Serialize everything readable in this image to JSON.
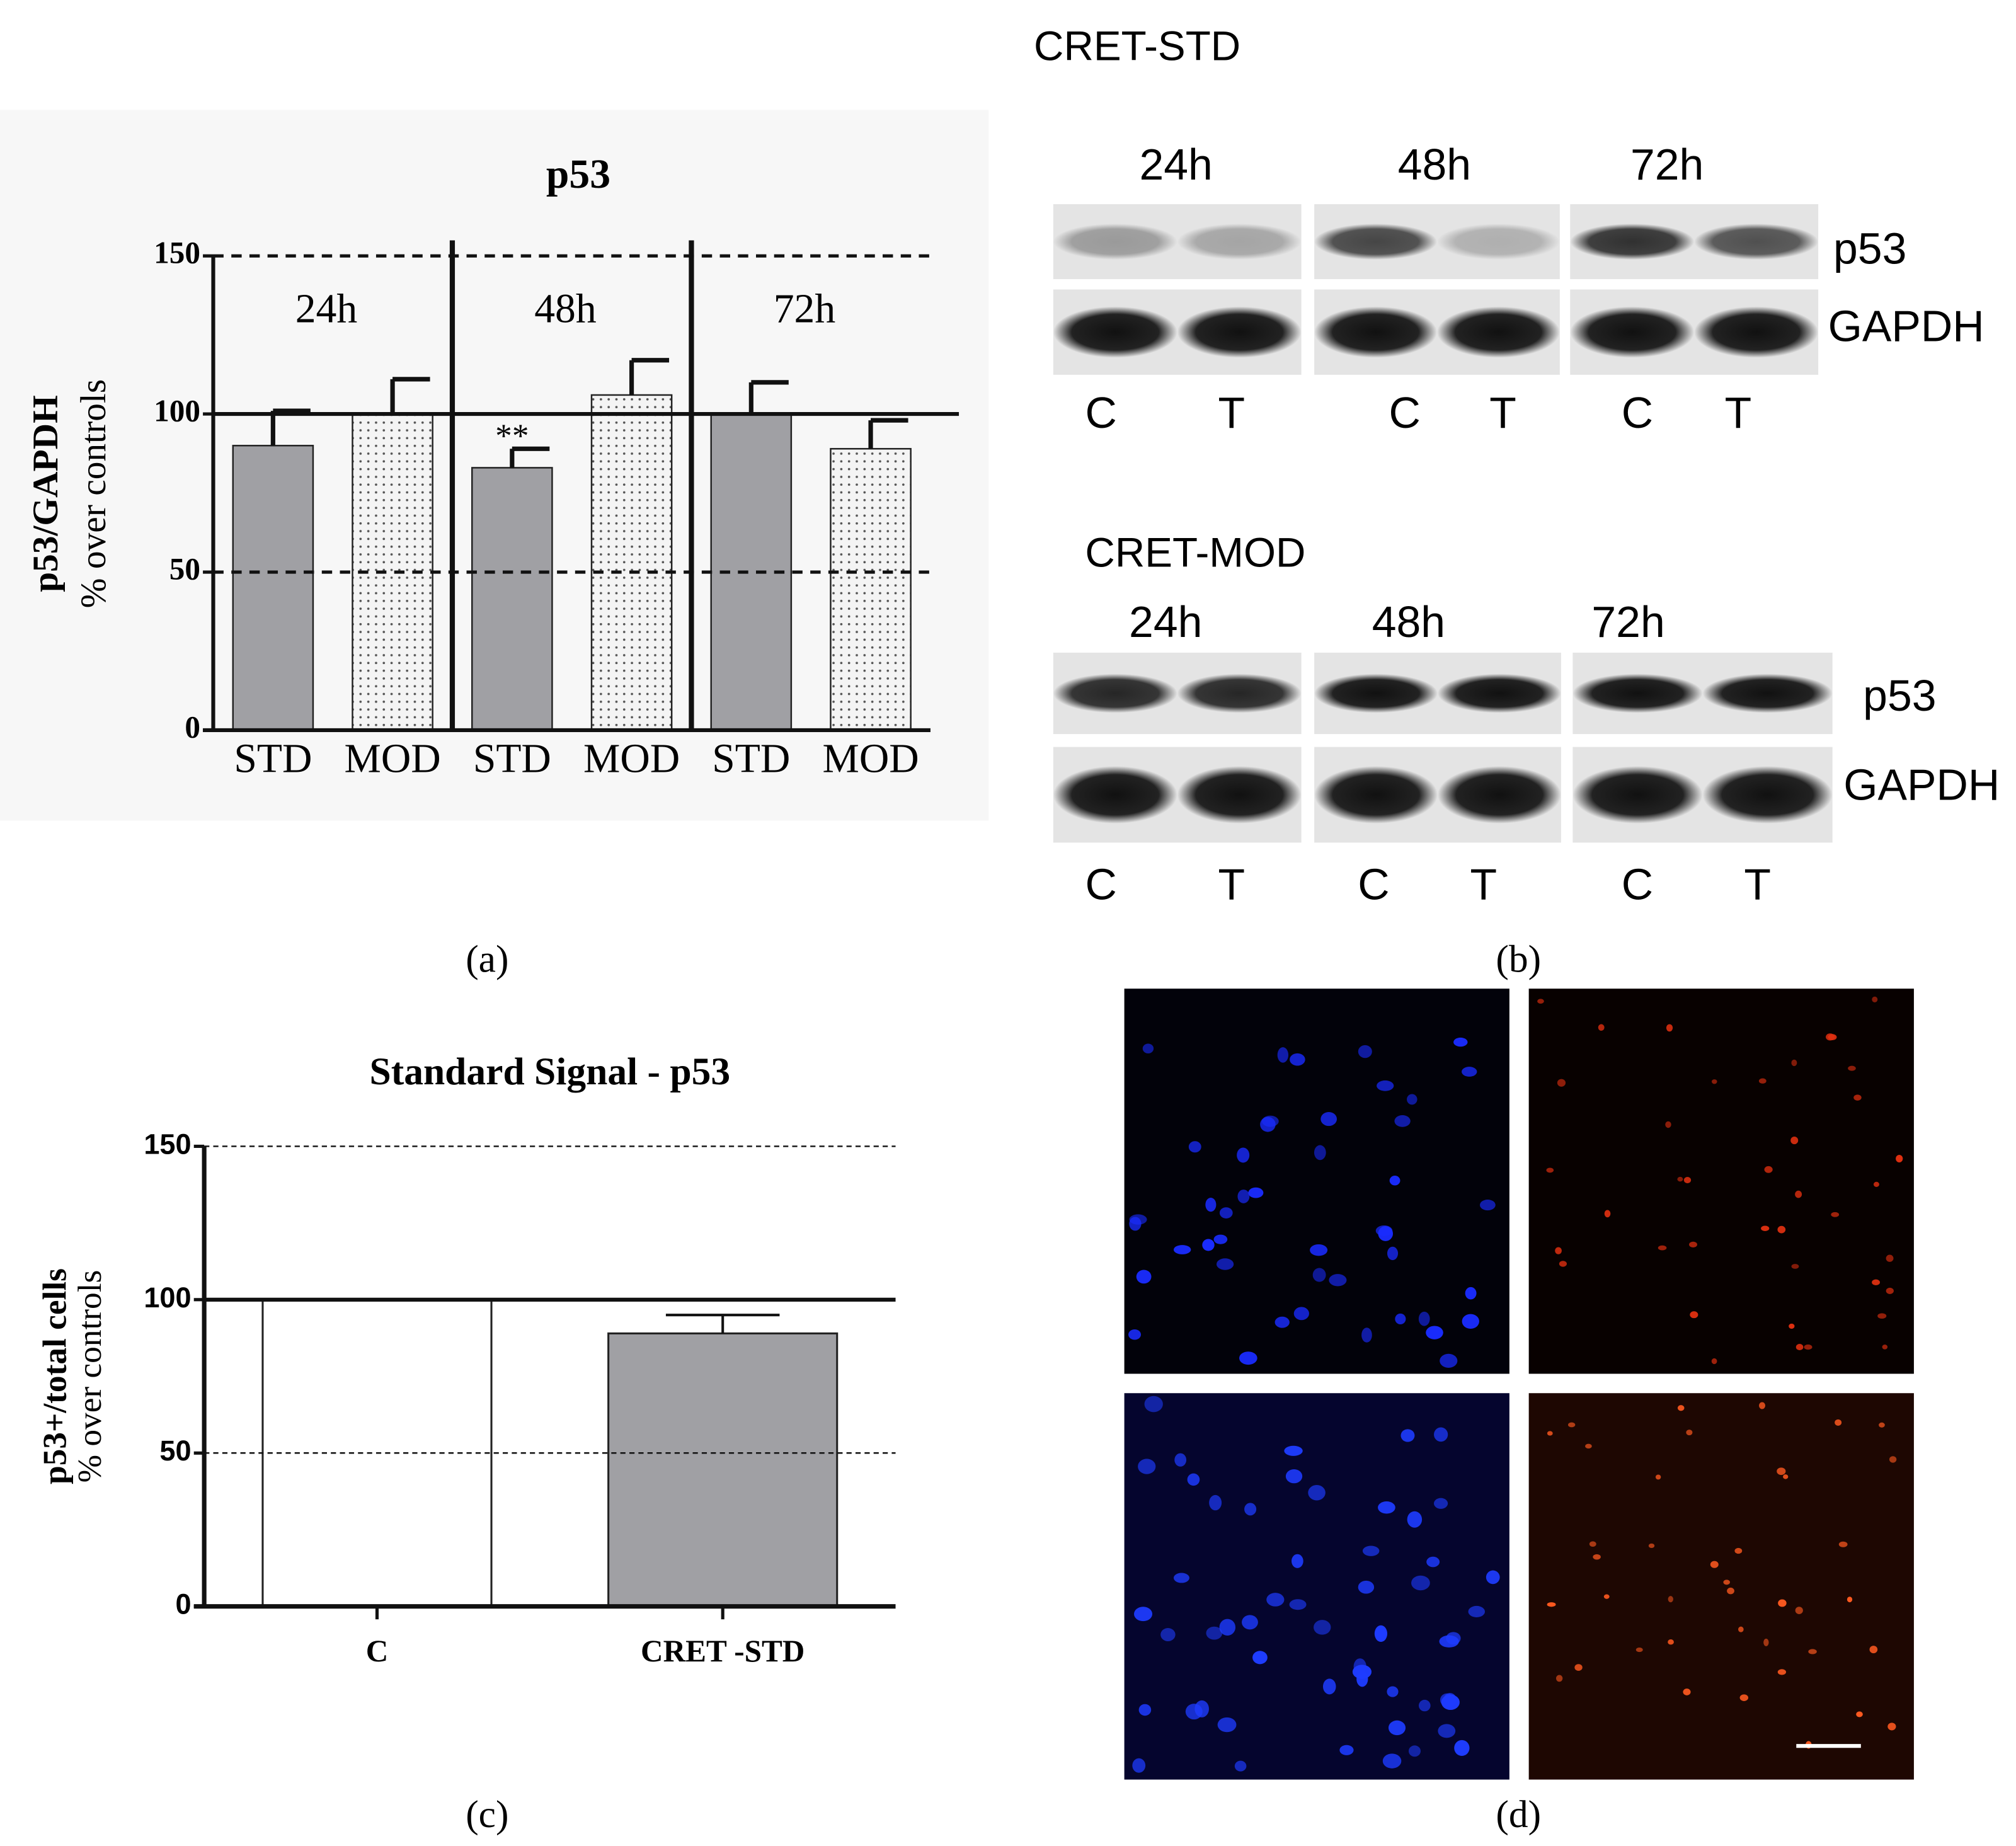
{
  "chart_data": [
    {
      "type": "bar",
      "title": "p53",
      "y_label": [
        "p53/GAPDH",
        "% over controls"
      ],
      "categories": [
        "STD",
        "MOD",
        "STD",
        "MOD",
        "STD",
        "MOD"
      ],
      "groups": [
        "24h",
        "48h",
        "72h"
      ],
      "values": [
        90,
        100,
        83,
        106,
        100,
        89
      ],
      "errors": [
        11,
        11,
        6,
        11,
        10,
        9
      ],
      "significance": [
        null,
        null,
        "**",
        null,
        null,
        null
      ],
      "colors": [
        "#a0a0a4",
        "#f4f4f4",
        "#a0a0a4",
        "#f4f4f4",
        "#a0a0a4",
        "#f4f4f4"
      ],
      "fill_pattern": [
        "solid",
        "dots",
        "solid",
        "dots",
        "solid",
        "dots"
      ],
      "ylim": [
        0,
        150
      ],
      "yticks": [
        0,
        50,
        100,
        150
      ],
      "grid": true,
      "reference_line": 100
    },
    {
      "type": "bar",
      "title": "Standard Signal - p53",
      "y_label": [
        "p53+/total cells",
        "% over controls"
      ],
      "categories": [
        "C",
        "CRET -STD"
      ],
      "values": [
        100,
        89
      ],
      "errors": [
        null,
        6
      ],
      "colors": [
        "#ffffff",
        "#a0a0a4"
      ],
      "fill_pattern": [
        "solid",
        "solid"
      ],
      "ylim": [
        0,
        150
      ],
      "yticks": [
        0,
        50,
        100,
        150
      ],
      "grid": true,
      "reference_line": 100
    }
  ],
  "blots": [
    {
      "title": "CRET-STD",
      "times": [
        "24h",
        "48h",
        "72h"
      ],
      "rows": [
        "p53",
        "GAPDH"
      ],
      "lanes": [
        "C",
        "T",
        "C",
        "T",
        "C",
        "T"
      ]
    },
    {
      "title": "CRET-MOD",
      "times": [
        "24h",
        "48h",
        "72h"
      ],
      "rows": [
        "p53",
        "GAPDH"
      ],
      "lanes": [
        "C",
        "T",
        "C",
        "T",
        "C",
        "T"
      ]
    }
  ],
  "panel_labels": [
    "(a)",
    "(b)",
    "(c)",
    "(d)"
  ]
}
